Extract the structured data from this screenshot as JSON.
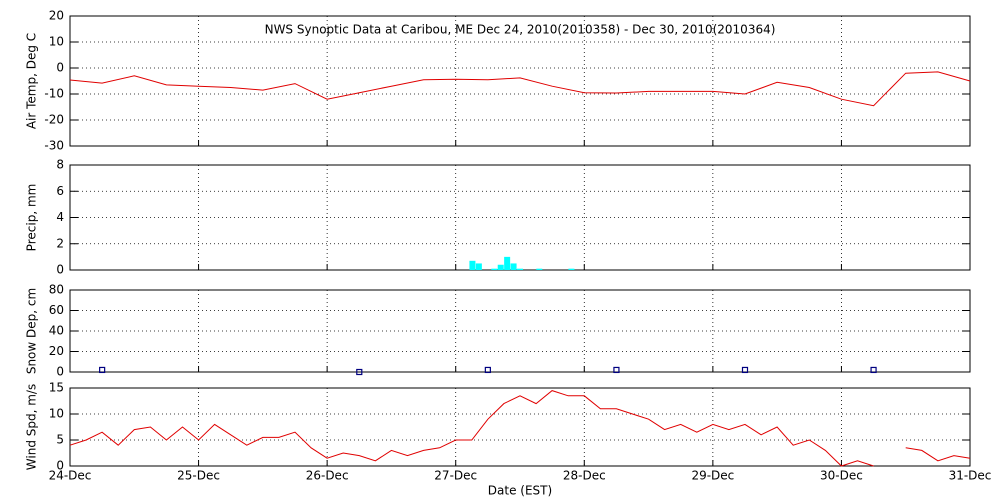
{
  "chart_data": [
    {
      "type": "line",
      "title": "NWS Synoptic Data at Caribou, ME   Dec 24, 2010(2010358) - Dec 30, 2010(2010364)",
      "y_label": "Air Temp, Deg C",
      "color": "#e00000",
      "grid": true,
      "xlim": [
        24,
        31
      ],
      "ylim": [
        -30,
        20
      ],
      "yticks": [
        -30,
        -20,
        -10,
        0,
        10,
        20
      ],
      "x": [
        24,
        24.25,
        24.5,
        24.75,
        25,
        25.25,
        25.5,
        25.75,
        26,
        26.25,
        26.5,
        26.75,
        27,
        27.25,
        27.5,
        27.75,
        28,
        28.25,
        28.5,
        28.75,
        29,
        29.25,
        29.5,
        29.75,
        30,
        30.25,
        30.5,
        30.75,
        31
      ],
      "values": [
        -4.6,
        -5.8,
        -3,
        -6.5,
        -7,
        -7.5,
        -8.5,
        -6,
        -12,
        -9.5,
        -7,
        -4.5,
        -4.3,
        -4.5,
        -3.8,
        -7,
        -9.5,
        -9.6,
        -9,
        -9,
        -9,
        -10,
        -5.5,
        -7.5,
        -12,
        -14.5,
        -2,
        -1.5,
        -5
      ]
    },
    {
      "type": "bar",
      "y_label": "Precip, mm",
      "color": "#00ffff",
      "grid": true,
      "xlim": [
        24,
        31
      ],
      "ylim": [
        0,
        8
      ],
      "yticks": [
        0,
        2,
        4,
        6,
        8
      ],
      "x": [
        27.13,
        27.18,
        27.3,
        27.35,
        27.4,
        27.45,
        27.5,
        27.65,
        27.9
      ],
      "values": [
        0.7,
        0.5,
        0.1,
        0.4,
        1.0,
        0.5,
        0.1,
        0.1,
        0.1
      ]
    },
    {
      "type": "scatter",
      "y_label": "Snow Dep, cm",
      "color": "#000080",
      "grid": true,
      "xlim": [
        24,
        31
      ],
      "ylim": [
        0,
        80
      ],
      "yticks": [
        0,
        20,
        40,
        60,
        80
      ],
      "x": [
        24.25,
        26.25,
        27.25,
        28.25,
        29.25,
        30.25
      ],
      "values": [
        2,
        0,
        2,
        2,
        2,
        2
      ]
    },
    {
      "type": "line",
      "y_label": "Wind Spd, m/s",
      "x_label": "Date (EST)",
      "color": "#e00000",
      "grid": true,
      "xlim": [
        24,
        31
      ],
      "ylim": [
        0,
        15
      ],
      "yticks": [
        0,
        5,
        10,
        15
      ],
      "xticks": [
        {
          "value": 24,
          "label": "24-Dec"
        },
        {
          "value": 25,
          "label": "25-Dec"
        },
        {
          "value": 26,
          "label": "26-Dec"
        },
        {
          "value": 27,
          "label": "27-Dec"
        },
        {
          "value": 28,
          "label": "28-Dec"
        },
        {
          "value": 29,
          "label": "29-Dec"
        },
        {
          "value": 30,
          "label": "30-Dec"
        },
        {
          "value": 31,
          "label": "31-Dec"
        }
      ],
      "x": [
        24,
        24.125,
        24.25,
        24.375,
        24.5,
        24.625,
        24.75,
        24.875,
        25,
        25.125,
        25.25,
        25.375,
        25.5,
        25.625,
        25.75,
        25.875,
        26,
        26.125,
        26.25,
        26.375,
        26.5,
        26.625,
        26.75,
        26.875,
        27,
        27.125,
        27.25,
        27.375,
        27.5,
        27.625,
        27.75,
        27.875,
        28,
        28.125,
        28.25,
        28.375,
        28.5,
        28.625,
        28.75,
        28.875,
        29,
        29.125,
        29.25,
        29.375,
        29.5,
        29.625,
        29.75,
        29.875,
        30,
        30.125,
        30.25,
        30.375,
        30.5,
        30.625,
        30.75,
        30.875,
        31
      ],
      "values": [
        4,
        5,
        6.5,
        4,
        7,
        7.5,
        5,
        7.5,
        5,
        8,
        6,
        4,
        5.5,
        5.5,
        6.5,
        3.5,
        1.5,
        2.5,
        2,
        1,
        3,
        2,
        3,
        3.5,
        5,
        5,
        9,
        12,
        13.5,
        12,
        14.5,
        13.5,
        13.5,
        11,
        11,
        10,
        9,
        7,
        8,
        6.5,
        8,
        7,
        8,
        6,
        7.5,
        4,
        5,
        3,
        0,
        1,
        0,
        null,
        3.5,
        3,
        1,
        2,
        1.5
      ]
    }
  ]
}
